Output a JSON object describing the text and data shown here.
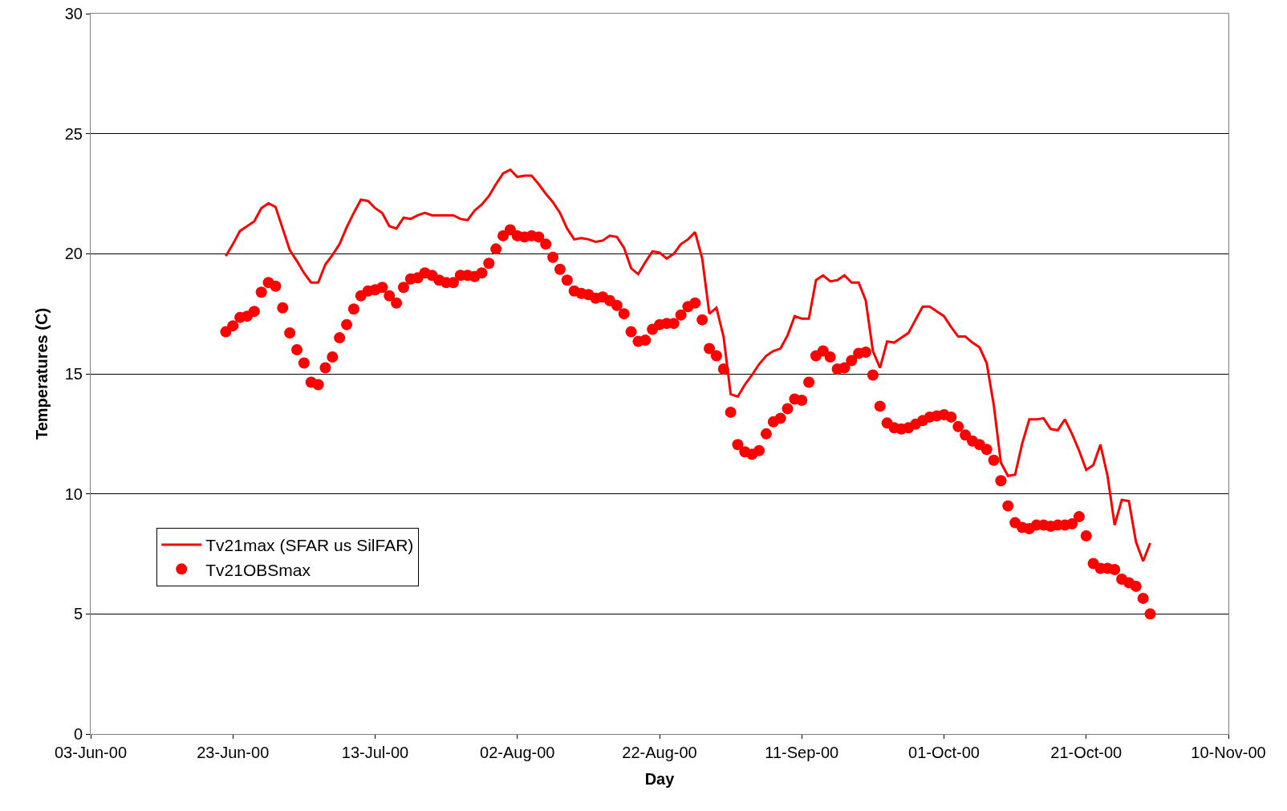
{
  "chart_data": {
    "type": "line",
    "xlabel": "Day",
    "ylabel": "Temperatures (C)",
    "x": [
      "2000-06-22",
      "2000-06-23",
      "2000-06-24",
      "2000-06-25",
      "2000-06-26",
      "2000-06-27",
      "2000-06-28",
      "2000-06-29",
      "2000-06-30",
      "2000-07-01",
      "2000-07-02",
      "2000-07-03",
      "2000-07-04",
      "2000-07-05",
      "2000-07-06",
      "2000-07-07",
      "2000-07-08",
      "2000-07-09",
      "2000-07-10",
      "2000-07-11",
      "2000-07-12",
      "2000-07-13",
      "2000-07-14",
      "2000-07-15",
      "2000-07-16",
      "2000-07-17",
      "2000-07-18",
      "2000-07-19",
      "2000-07-20",
      "2000-07-21",
      "2000-07-22",
      "2000-07-23",
      "2000-07-24",
      "2000-07-25",
      "2000-07-26",
      "2000-07-27",
      "2000-07-28",
      "2000-07-29",
      "2000-07-30",
      "2000-07-31",
      "2000-08-01",
      "2000-08-02",
      "2000-08-03",
      "2000-08-04",
      "2000-08-05",
      "2000-08-06",
      "2000-08-07",
      "2000-08-08",
      "2000-08-09",
      "2000-08-10",
      "2000-08-11",
      "2000-08-12",
      "2000-08-13",
      "2000-08-14",
      "2000-08-15",
      "2000-08-16",
      "2000-08-17",
      "2000-08-18",
      "2000-08-19",
      "2000-08-20",
      "2000-08-21",
      "2000-08-22",
      "2000-08-23",
      "2000-08-24",
      "2000-08-25",
      "2000-08-26",
      "2000-08-27",
      "2000-08-28",
      "2000-08-29",
      "2000-08-30",
      "2000-08-31",
      "2000-09-01",
      "2000-09-02",
      "2000-09-03",
      "2000-09-04",
      "2000-09-05",
      "2000-09-06",
      "2000-09-07",
      "2000-09-08",
      "2000-09-09",
      "2000-09-10",
      "2000-09-11",
      "2000-09-12",
      "2000-09-13",
      "2000-09-14",
      "2000-09-15",
      "2000-09-16",
      "2000-09-17",
      "2000-09-18",
      "2000-09-19",
      "2000-09-20",
      "2000-09-21",
      "2000-09-22",
      "2000-09-23",
      "2000-09-24",
      "2000-09-25",
      "2000-09-26",
      "2000-09-27",
      "2000-09-28",
      "2000-09-29",
      "2000-09-30",
      "2000-10-01",
      "2000-10-02",
      "2000-10-03",
      "2000-10-04",
      "2000-10-05",
      "2000-10-06",
      "2000-10-07",
      "2000-10-08",
      "2000-10-09",
      "2000-10-10",
      "2000-10-11",
      "2000-10-12",
      "2000-10-13",
      "2000-10-14",
      "2000-10-15",
      "2000-10-16",
      "2000-10-17",
      "2000-10-18",
      "2000-10-19",
      "2000-10-20",
      "2000-10-21",
      "2000-10-22",
      "2000-10-23",
      "2000-10-24",
      "2000-10-25",
      "2000-10-26",
      "2000-10-27",
      "2000-10-28",
      "2000-10-29",
      "2000-10-30"
    ],
    "series": [
      {
        "name": "Tv21max (SFAR us SilFAR)",
        "color": "#ff0000",
        "marker": "none",
        "line_style": "solid",
        "values": [
          19.9,
          20.4,
          20.95,
          21.15,
          21.35,
          21.9,
          22.1,
          21.95,
          21.05,
          20.15,
          19.7,
          19.2,
          18.8,
          18.8,
          19.55,
          19.95,
          20.4,
          21.1,
          21.7,
          22.25,
          22.2,
          21.9,
          21.7,
          21.15,
          21.05,
          21.5,
          21.45,
          21.6,
          21.7,
          21.6,
          21.6,
          21.6,
          21.6,
          21.45,
          21.4,
          21.8,
          22.05,
          22.4,
          22.9,
          23.35,
          23.5,
          23.2,
          23.25,
          23.25,
          22.9,
          22.5,
          22.15,
          21.7,
          21.05,
          20.6,
          20.65,
          20.6,
          20.5,
          20.55,
          20.75,
          20.7,
          20.25,
          19.4,
          19.15,
          19.65,
          20.1,
          20.05,
          19.8,
          20.0,
          20.4,
          20.6,
          20.9,
          19.8,
          17.5,
          17.75,
          16.55,
          14.15,
          14.05,
          14.55,
          14.95,
          15.4,
          15.75,
          15.95,
          16.05,
          16.6,
          17.4,
          17.3,
          17.3,
          18.9,
          19.1,
          18.85,
          18.9,
          19.1,
          18.8,
          18.8,
          18.05,
          15.95,
          15.25,
          16.35,
          16.3,
          16.5,
          16.7,
          17.25,
          17.8,
          17.8,
          17.6,
          17.4,
          16.95,
          16.55,
          16.55,
          16.3,
          16.1,
          15.45,
          13.7,
          11.3,
          10.75,
          10.8,
          12.1,
          13.1,
          13.1,
          13.15,
          12.7,
          12.65,
          13.1,
          12.5,
          11.8,
          11.0,
          11.2,
          12.05,
          10.75,
          8.7,
          9.75,
          9.7,
          8.0,
          7.2,
          7.95
        ]
      },
      {
        "name": "Tv21OBSmax",
        "color": "#ff0000",
        "type": "scatter",
        "marker": "circle",
        "values": [
          16.75,
          17.0,
          17.35,
          17.4,
          17.6,
          18.4,
          18.8,
          18.65,
          17.75,
          16.7,
          16.0,
          15.45,
          14.65,
          14.55,
          15.25,
          15.7,
          16.5,
          17.05,
          17.7,
          18.25,
          18.45,
          18.5,
          18.6,
          18.25,
          17.95,
          18.6,
          18.95,
          19.0,
          19.2,
          19.1,
          18.9,
          18.8,
          18.8,
          19.1,
          19.1,
          19.05,
          19.2,
          19.6,
          20.2,
          20.75,
          21.0,
          20.75,
          20.7,
          20.75,
          20.7,
          20.4,
          19.85,
          19.35,
          18.9,
          18.45,
          18.35,
          18.3,
          18.15,
          18.2,
          18.05,
          17.85,
          17.5,
          16.75,
          16.35,
          16.4,
          16.85,
          17.05,
          17.1,
          17.1,
          17.45,
          17.8,
          17.95,
          17.25,
          16.05,
          15.75,
          15.2,
          13.4,
          12.05,
          11.75,
          11.65,
          11.8,
          12.5,
          13.0,
          13.15,
          13.55,
          13.95,
          13.9,
          14.65,
          15.75,
          15.95,
          15.7,
          15.2,
          15.25,
          15.55,
          15.85,
          15.9,
          14.95,
          13.65,
          12.95,
          12.75,
          12.7,
          12.75,
          12.9,
          13.05,
          13.2,
          13.25,
          13.3,
          13.2,
          12.8,
          12.45,
          12.2,
          12.05,
          11.85,
          11.4,
          10.55,
          9.5,
          8.8,
          8.6,
          8.55,
          8.7,
          8.7,
          8.65,
          8.7,
          8.7,
          8.75,
          9.05,
          8.25,
          7.1,
          6.9,
          6.9,
          6.85,
          6.45,
          6.3,
          6.15,
          5.65,
          5.0
        ]
      }
    ],
    "xlim": [
      "2000-06-03",
      "2000-11-10"
    ],
    "xticks": [
      {
        "value": "2000-06-03",
        "label": "03-Jun-00"
      },
      {
        "value": "2000-06-23",
        "label": "23-Jun-00"
      },
      {
        "value": "2000-07-13",
        "label": "13-Jul-00"
      },
      {
        "value": "2000-08-02",
        "label": "02-Aug-00"
      },
      {
        "value": "2000-08-22",
        "label": "22-Aug-00"
      },
      {
        "value": "2000-09-11",
        "label": "11-Sep-00"
      },
      {
        "value": "2000-10-01",
        "label": "01-Oct-00"
      },
      {
        "value": "2000-10-21",
        "label": "21-Oct-00"
      },
      {
        "value": "2000-11-10",
        "label": "10-Nov-00"
      }
    ],
    "ylim": [
      0,
      30
    ],
    "yticks": [
      0,
      5,
      10,
      15,
      20,
      25,
      30
    ],
    "grid": "y",
    "legend": "bottom left"
  }
}
